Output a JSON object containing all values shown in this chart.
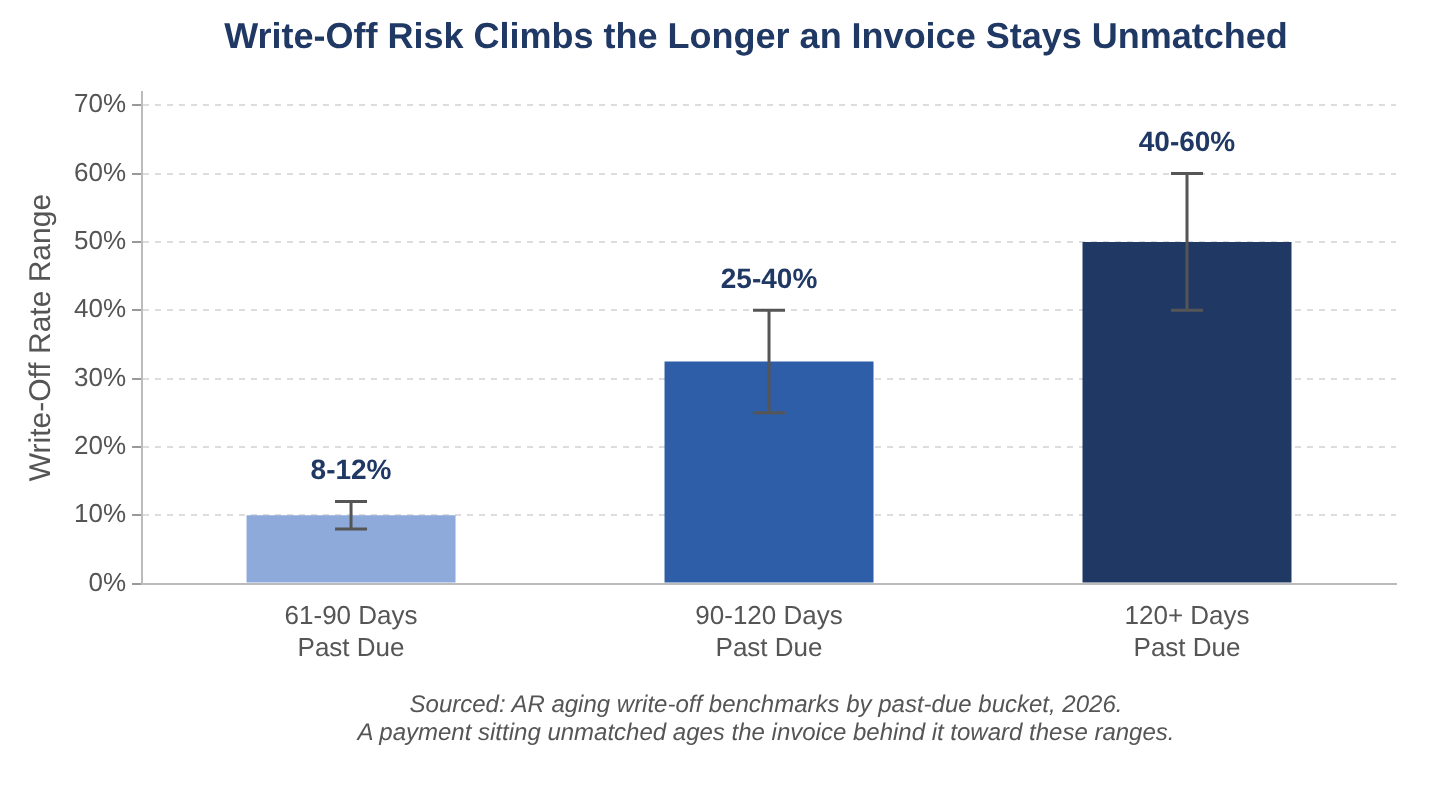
{
  "chart_data": {
    "type": "bar",
    "title": "Write-Off Risk Climbs the Longer an Invoice Stays Unmatched",
    "ylabel": "Write-Off Rate Range",
    "categories": [
      "61-90 Days\nPast Due",
      "90-120 Days\nPast Due",
      "120+ Days\nPast Due"
    ],
    "values": [
      10,
      32.5,
      50
    ],
    "colors": [
      "#8eaadb",
      "#2e5ea8",
      "#1f3864"
    ],
    "errors": [
      [
        8,
        12
      ],
      [
        25,
        40
      ],
      [
        40,
        60
      ]
    ],
    "ylim": [
      0,
      72
    ],
    "yticks": [
      {
        "value": 0,
        "label": "0%"
      },
      {
        "value": 10,
        "label": "10%"
      },
      {
        "value": 20,
        "label": "20%"
      },
      {
        "value": 30,
        "label": "30%"
      },
      {
        "value": 40,
        "label": "40%"
      },
      {
        "value": 50,
        "label": "50%"
      },
      {
        "value": 60,
        "label": "60%"
      },
      {
        "value": 70,
        "label": "70%"
      }
    ],
    "grid": "y",
    "legend": false,
    "annotations": [
      {
        "text": "8-12%",
        "x": "61-90 Days\nPast Due",
        "y": 12
      },
      {
        "text": "25-40%",
        "x": "90-120 Days\nPast Due",
        "y": 40
      },
      {
        "text": "40-60%",
        "x": "120+ Days\nPast Due",
        "y": 60
      },
      "Sourced: AR aging write-off benchmarks by past-due bucket, 2026.",
      "A payment sitting unmatched ages the invoice behind it toward these ranges."
    ]
  }
}
